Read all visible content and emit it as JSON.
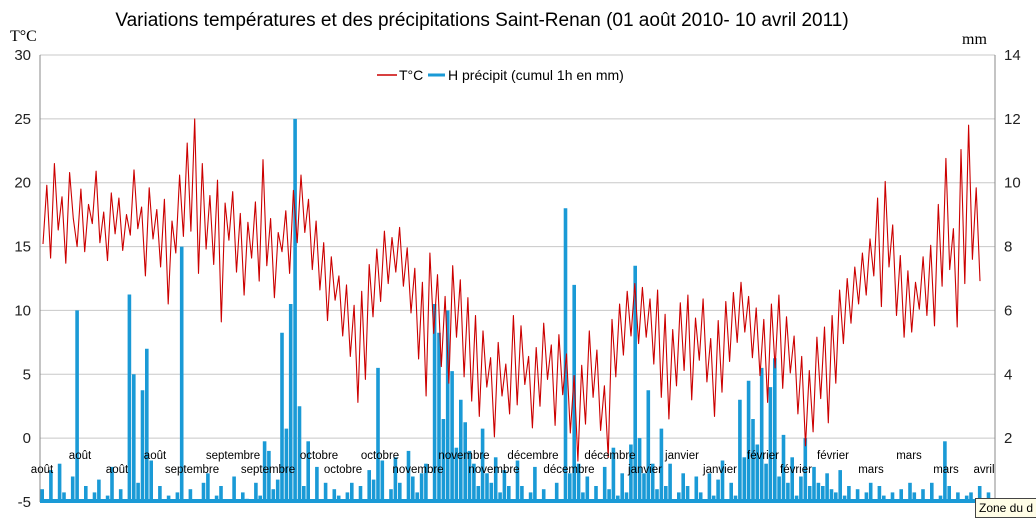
{
  "chart_data": {
    "type": "line",
    "title": "Variations températures et des précipitations Saint-Renan (01 août 2010- 10 avril 2011)",
    "y_left_label": "T°C",
    "y_right_label": "mm",
    "y_left_ticks": [
      "30",
      "25",
      "20",
      "15",
      "10",
      "5",
      "0",
      "-5"
    ],
    "y_right_ticks": [
      "14",
      "12",
      "10",
      "8",
      "6",
      "4",
      "2"
    ],
    "ylim_left": [
      -5,
      30
    ],
    "ylim_right": [
      0,
      14
    ],
    "grid": true,
    "legend_position": "top-center",
    "month_labels_row1": [
      "août",
      "août",
      "septembre",
      "octobre",
      "octobre",
      "novembre",
      "décembre",
      "décembre",
      "janvier",
      "février",
      "février",
      "mars"
    ],
    "month_labels_row2": [
      "août",
      "août",
      "septembre",
      "septembre",
      "octobre",
      "novembre",
      "novembre",
      "décembre",
      "janvier",
      "janvier",
      "février",
      "mars",
      "mars",
      "avril"
    ],
    "series": [
      {
        "name": "T°C",
        "color": "#cc0000",
        "axis": "left",
        "values": [
          15.2,
          19.8,
          14.1,
          21.5,
          16.3,
          18.9,
          13.7,
          20.8,
          17.2,
          15.0,
          19.5,
          14.6,
          18.3,
          16.8,
          20.9,
          15.3,
          17.7,
          13.9,
          19.2,
          16.0,
          18.8,
          14.7,
          17.5,
          15.9,
          21.0,
          16.4,
          18.1,
          12.7,
          19.6,
          15.6,
          17.9,
          13.4,
          18.7,
          10.5,
          17.0,
          14.5,
          20.6,
          15.8,
          23.1,
          16.2,
          25.0,
          12.9,
          21.5,
          14.8,
          19.0,
          13.6,
          20.2,
          9.1,
          18.4,
          15.5,
          19.3,
          13.0,
          17.6,
          11.2,
          16.9,
          14.1,
          18.5,
          12.3,
          21.8,
          13.5,
          17.2,
          11.0,
          16.1,
          14.6,
          17.8,
          12.9,
          19.4,
          15.3,
          20.6,
          16.1,
          18.7,
          13.2,
          17.0,
          11.6,
          15.3,
          9.2,
          14.2,
          10.8,
          12.7,
          8.0,
          12.0,
          6.4,
          10.4,
          2.8,
          11.5,
          4.6,
          13.6,
          9.5,
          14.8,
          10.7,
          16.2,
          12.1,
          15.7,
          13.0,
          16.5,
          11.9,
          14.9,
          9.8,
          13.3,
          6.2,
          12.2,
          3.3,
          14.5,
          8.2,
          12.8,
          5.6,
          11.1,
          4.3,
          13.5,
          7.9,
          12.4,
          4.8,
          11.0,
          2.9,
          9.6,
          1.7,
          8.4,
          4.0,
          6.3,
          0.1,
          7.5,
          3.3,
          5.8,
          1.9,
          9.6,
          2.6,
          8.8,
          4.2,
          6.4,
          0.8,
          7.1,
          2.5,
          9.0,
          4.6,
          7.3,
          1.0,
          8.1,
          3.4,
          6.6,
          0.4,
          4.9,
          -1.8,
          5.7,
          1.1,
          8.4,
          3.2,
          6.9,
          0.6,
          4.1,
          -1.5,
          9.3,
          4.8,
          10.5,
          6.5,
          11.5,
          8.0,
          12.1,
          7.4,
          11.8,
          7.9,
          10.9,
          5.8,
          11.6,
          3.2,
          9.7,
          1.5,
          8.5,
          4.1,
          10.6,
          5.3,
          11.2,
          3.0,
          9.4,
          6.1,
          10.9,
          4.4,
          7.8,
          1.7,
          9.2,
          3.6,
          10.7,
          6.0,
          11.4,
          7.5,
          12.2,
          8.3,
          11.1,
          6.3,
          10.2,
          4.9,
          9.3,
          2.8,
          10.5,
          5.5,
          11.2,
          3.9,
          9.5,
          5.1,
          8.0,
          1.9,
          6.4,
          -0.6,
          5.3,
          0.5,
          7.9,
          3.1,
          8.7,
          1.2,
          9.6,
          4.3,
          11.6,
          7.4,
          12.5,
          9.0,
          13.4,
          10.5,
          14.5,
          11.2,
          15.6,
          12.7,
          18.8,
          10.3,
          20.1,
          13.4,
          16.7,
          9.6,
          14.3,
          7.9,
          13.1,
          8.3,
          12.2,
          10.1,
          14.2,
          9.6,
          15.1,
          8.8,
          18.3,
          11.9,
          21.9,
          13.2,
          16.4,
          8.7,
          22.6,
          12.1,
          24.5,
          14.0,
          19.6,
          12.3
        ]
      },
      {
        "name": "H précipit (cumul 1h en mm)",
        "color": "#1a9ad6",
        "axis": "right",
        "values": [
          0.4,
          0.0,
          1.0,
          0.0,
          1.2,
          0.3,
          0.0,
          0.8,
          6.0,
          0.0,
          0.5,
          0.0,
          0.3,
          0.7,
          0.0,
          0.2,
          1.1,
          0.0,
          0.4,
          0.0,
          6.5,
          4.0,
          0.6,
          3.5,
          4.8,
          1.3,
          0.0,
          0.5,
          0.0,
          0.2,
          0.0,
          0.3,
          8.0,
          0.0,
          0.4,
          0.0,
          0.0,
          0.6,
          0.9,
          0.0,
          0.2,
          0.5,
          0.0,
          0.0,
          0.8,
          0.0,
          0.3,
          0.1,
          0.0,
          0.6,
          0.2,
          1.9,
          1.6,
          0.4,
          0.7,
          5.3,
          2.3,
          6.2,
          12.0,
          3.0,
          0.5,
          1.9,
          0.0,
          1.1,
          0.0,
          0.6,
          0.0,
          0.4,
          0.2,
          0.0,
          0.3,
          0.6,
          0.0,
          0.5,
          0.0,
          1.0,
          0.7,
          4.2,
          1.3,
          0.0,
          0.4,
          1.4,
          0.6,
          0.0,
          1.6,
          0.8,
          0.3,
          0.9,
          1.2,
          0.0,
          6.2,
          5.3,
          2.6,
          6.0,
          4.1,
          1.7,
          3.2,
          2.5,
          1.6,
          1.2,
          0.5,
          2.3,
          0.9,
          0.6,
          1.4,
          0.3,
          1.0,
          0.5,
          0.0,
          1.3,
          0.5,
          0.0,
          0.3,
          1.1,
          0.0,
          0.4,
          0.0,
          0.0,
          0.6,
          0.0,
          9.2,
          0.9,
          6.8,
          1.2,
          0.3,
          0.8,
          0.0,
          0.5,
          0.0,
          1.1,
          0.4,
          1.7,
          0.2,
          0.9,
          0.3,
          1.8,
          7.4,
          2.0,
          0.9,
          3.5,
          1.2,
          0.4,
          2.3,
          0.5,
          1.2,
          0.0,
          0.3,
          0.9,
          0.5,
          0.0,
          0.8,
          0.3,
          0.0,
          0.9,
          0.2,
          0.7,
          1.3,
          0.0,
          0.6,
          0.2,
          3.2,
          1.4,
          3.8,
          2.6,
          1.8,
          4.2,
          1.2,
          3.6,
          4.5,
          0.8,
          2.1,
          0.6,
          1.4,
          0.2,
          0.8,
          2.0,
          0.5,
          1.1,
          0.6,
          0.5,
          0.9,
          0.4,
          0.3,
          1.0,
          0.2,
          0.5,
          0.0,
          0.4,
          0.0,
          0.3,
          0.6,
          0.0,
          0.5,
          0.2,
          0.0,
          0.3,
          0.0,
          0.4,
          0.0,
          0.6,
          0.3,
          0.0,
          0.4,
          0.0,
          0.6,
          0.0,
          0.2,
          1.9,
          0.5,
          0.0,
          0.3,
          0.0,
          0.2,
          0.3,
          0.0,
          0.5,
          0.0,
          0.3,
          0.0
        ]
      }
    ]
  },
  "tooltip": {
    "text": "Zone du d"
  }
}
